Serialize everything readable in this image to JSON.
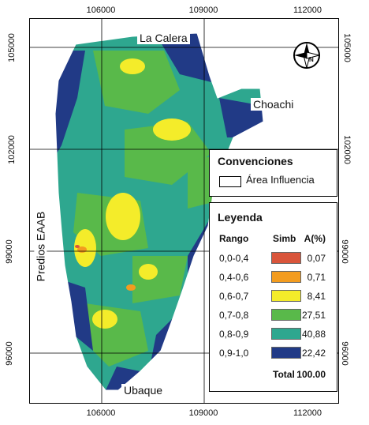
{
  "axes": {
    "x_ticks": [
      "106000",
      "109000",
      "112000"
    ],
    "y_ticks": [
      "105000",
      "102000",
      "99000",
      "96000"
    ]
  },
  "places": {
    "north": "La Calera",
    "east": "Choachi",
    "south": "Ubaque",
    "west": "Predios EAAB"
  },
  "compass": {
    "label": "N",
    "icon": "north-arrow-icon"
  },
  "conventions": {
    "title": "Convenciones",
    "item": "Área Influencia"
  },
  "legend": {
    "title": "Leyenda",
    "col_range": "Rango",
    "col_symbol": "Simb",
    "col_percent": "A(%)",
    "rows": [
      {
        "range": "0,0-0,4",
        "color": "#d9553b",
        "percent": "0,07"
      },
      {
        "range": "0,4-0,6",
        "color": "#f39c1f",
        "percent": "0,71"
      },
      {
        "range": "0,6-0,7",
        "color": "#f4ec2a",
        "percent": "8,41"
      },
      {
        "range": "0,7-0,8",
        "color": "#59b94a",
        "percent": "27,51"
      },
      {
        "range": "0,8-0,9",
        "color": "#2ea78f",
        "percent": "40,88"
      },
      {
        "range": "0,9-1,0",
        "color": "#213a86",
        "percent": "22,42"
      }
    ],
    "total_label": "Total",
    "total_value": "100.00"
  }
}
